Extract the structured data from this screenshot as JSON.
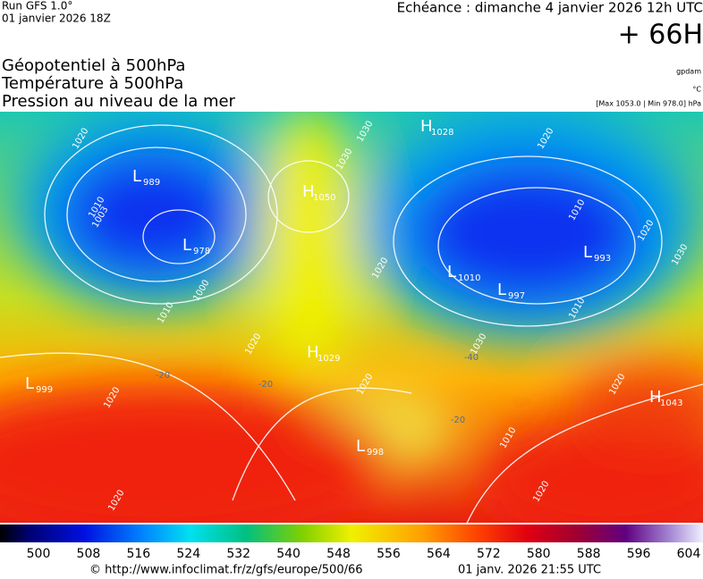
{
  "header": {
    "run": "Run GFS 1.0°",
    "run_date": "01 janvier 2026 18Z",
    "valid": "Echéance : dimanche 4 janvier 2026 12h UTC",
    "lead": "+ 66H"
  },
  "fields": [
    "Géopotentiel à 500hPa",
    "Température à 500hPa",
    "Pression au niveau de la mer"
  ],
  "units": {
    "geopotential": "gpdam",
    "temperature": "°C",
    "pressure": "[Max 1053.0 | Min 978.0] hPa"
  },
  "centers": [
    {
      "kind": "L",
      "value": "989"
    },
    {
      "kind": "L",
      "value": "978"
    },
    {
      "kind": "H",
      "value": "1050"
    },
    {
      "kind": "H",
      "value": "1028"
    },
    {
      "kind": "L",
      "value": "993"
    },
    {
      "kind": "L",
      "value": "997"
    },
    {
      "kind": "L",
      "value": "1010"
    },
    {
      "kind": "H",
      "value": "1029"
    },
    {
      "kind": "L",
      "value": "999"
    },
    {
      "kind": "L",
      "value": "998"
    },
    {
      "kind": "H",
      "value": "1043"
    }
  ],
  "isobar_labels": [
    "1020",
    "1030",
    "1030",
    "1010",
    "1003",
    "1000",
    "1010",
    "1020",
    "1010",
    "1020",
    "1030",
    "1020",
    "1010",
    "1020",
    "1030",
    "1020",
    "1020",
    "1010",
    "1020",
    "1020",
    "1020"
  ],
  "temperature_labels": [
    "-20",
    "-20",
    "-40",
    "-20"
  ],
  "legend": {
    "labels": [
      "500",
      "508",
      "516",
      "524",
      "532",
      "540",
      "548",
      "556",
      "564",
      "572",
      "580",
      "588",
      "596",
      "604"
    ]
  },
  "footer": {
    "url": "© http://www.infoclimat.fr/z/gfs/europe/500/66",
    "date": "01 janv. 2026 21:55 UTC"
  }
}
